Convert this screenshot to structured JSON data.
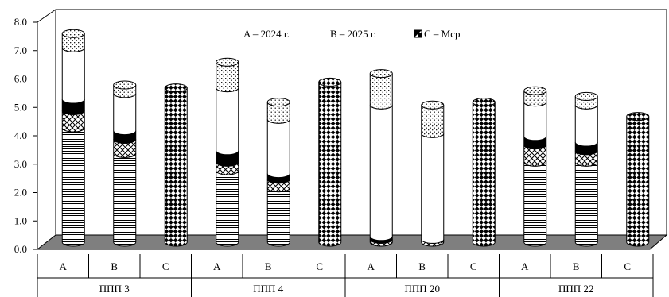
{
  "chart_data": {
    "type": "bar",
    "subtype": "stacked-3d-cylinder",
    "legend": [
      "A – 2024 г.",
      "B – 2025 г.",
      "C – Mcp"
    ],
    "legend_position": "top",
    "ylim": [
      0,
      8
    ],
    "y_ticks": [
      "0.0",
      "1.0",
      "2.0",
      "3.0",
      "4.0",
      "5.0",
      "6.0",
      "7.0",
      "8.0"
    ],
    "groups": [
      "ППП 3",
      "ППП 4",
      "ППП 20",
      "ППП 22"
    ],
    "categories": [
      "A",
      "B",
      "C",
      "A",
      "B",
      "C",
      "A",
      "B",
      "C",
      "A",
      "B",
      "C"
    ],
    "layers": [
      "horizontal-lines",
      "crosshatch",
      "black",
      "white",
      "dotted",
      "checker"
    ],
    "bars": [
      {
        "group": "ППП 3",
        "label": "A",
        "stack": [
          4.0,
          0.6,
          0.4,
          1.8,
          0.5,
          0.0
        ]
      },
      {
        "group": "ППП 3",
        "label": "B",
        "stack": [
          3.1,
          0.5,
          0.3,
          1.3,
          0.3,
          0.0
        ]
      },
      {
        "group": "ППП 3",
        "label": "C",
        "stack": [
          0.0,
          0.0,
          0.0,
          0.0,
          0.0,
          5.4
        ]
      },
      {
        "group": "ППП 4",
        "label": "A",
        "stack": [
          2.5,
          0.3,
          0.4,
          2.2,
          0.9,
          0.0
        ]
      },
      {
        "group": "ППП 4",
        "label": "B",
        "stack": [
          1.9,
          0.3,
          0.2,
          1.9,
          0.6,
          0.0
        ]
      },
      {
        "group": "ППП 4",
        "label": "C",
        "stack": [
          0.0,
          0.0,
          0.0,
          0.0,
          0.0,
          5.6
        ]
      },
      {
        "group": "ППП 20",
        "label": "A",
        "stack": [
          0.0,
          0.1,
          0.1,
          4.6,
          1.1,
          0.0
        ]
      },
      {
        "group": "ППП 20",
        "label": "B",
        "stack": [
          0.0,
          0.1,
          0.0,
          3.7,
          1.0,
          0.0
        ]
      },
      {
        "group": "ППП 20",
        "label": "C",
        "stack": [
          0.0,
          0.0,
          0.0,
          0.0,
          0.0,
          4.9
        ]
      },
      {
        "group": "ППП 22",
        "label": "A",
        "stack": [
          2.8,
          0.6,
          0.3,
          1.2,
          0.4,
          0.0
        ]
      },
      {
        "group": "ППП 22",
        "label": "B",
        "stack": [
          2.8,
          0.4,
          0.3,
          1.3,
          0.3,
          0.0
        ]
      },
      {
        "group": "ППП 22",
        "label": "C",
        "stack": [
          0.0,
          0.0,
          0.0,
          0.0,
          0.0,
          4.4
        ]
      }
    ],
    "floor_color": "#7f7f7f"
  }
}
